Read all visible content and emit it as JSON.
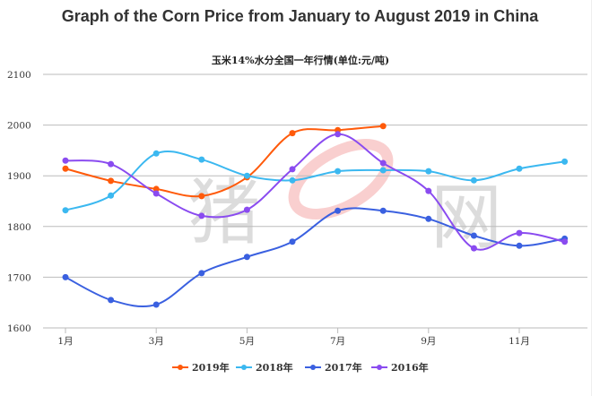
{
  "title": "Graph of the Corn Price from January to August 2019 in China",
  "watermark": {
    "left": "猪",
    "right": "网"
  },
  "chart_data": {
    "type": "line",
    "title": "玉米14%水分全国一年行情(单位:元/吨)",
    "xlabel": "",
    "ylabel": "",
    "categories": [
      "1月",
      "2月",
      "3月",
      "4月",
      "5月",
      "6月",
      "7月",
      "8月",
      "9月",
      "10月",
      "11月",
      "12月"
    ],
    "x_tick_labels": [
      "1月",
      "3月",
      "5月",
      "7月",
      "9月",
      "11月"
    ],
    "y_ticks": [
      1600,
      1700,
      1800,
      1900,
      2000,
      2100
    ],
    "ylim": [
      1600,
      2100
    ],
    "grid": "horizontal",
    "legend": "bottom",
    "smooth": true,
    "series": [
      {
        "name": "2019年",
        "color": "#ff5a0a",
        "values": [
          1914,
          1890,
          1874,
          1860,
          1897,
          1984,
          1990,
          1998,
          null,
          null,
          null,
          null
        ]
      },
      {
        "name": "2018年",
        "color": "#3bb8f0",
        "values": [
          1832,
          1861,
          1944,
          1932,
          1900,
          1891,
          1909,
          1911,
          1909,
          1891,
          1914,
          1928
        ]
      },
      {
        "name": "2017年",
        "color": "#3a60e0",
        "values": [
          1700,
          1655,
          1646,
          1708,
          1740,
          1770,
          1831,
          1831,
          1815,
          1782,
          1762,
          1776
        ]
      },
      {
        "name": "2016年",
        "color": "#8a4bf0",
        "values": [
          1930,
          1923,
          1865,
          1821,
          1833,
          1913,
          1982,
          1925,
          1870,
          1757,
          1787,
          1770
        ]
      }
    ]
  }
}
